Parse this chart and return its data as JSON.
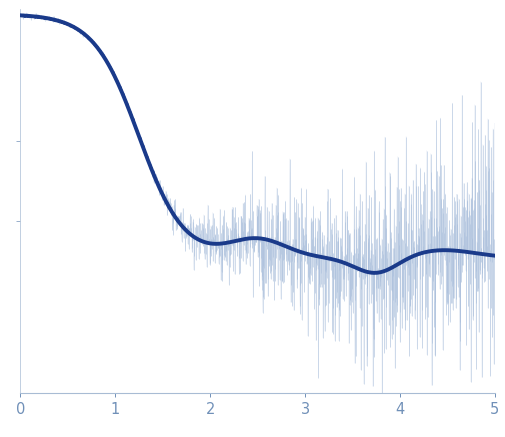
{
  "xlim": [
    0,
    5
  ],
  "ylim": [
    -0.45,
    1.0
  ],
  "xticks": [
    0,
    1,
    2,
    3,
    4,
    5
  ],
  "ytick_positions": [
    0.2,
    0.5
  ],
  "background_color": "#ffffff",
  "axis_color": "#a8bcd4",
  "smooth_color": "#1a3a8a",
  "raw_color": "#aabfdc",
  "noise_color": "#c0cfe0",
  "tick_label_color": "#7090b8",
  "smooth_linewidth": 2.8,
  "raw_linewidth": 0.5,
  "figsize": [
    5.05,
    4.37
  ],
  "dpi": 100,
  "num_raw_points": 1500,
  "num_smooth_points": 500
}
